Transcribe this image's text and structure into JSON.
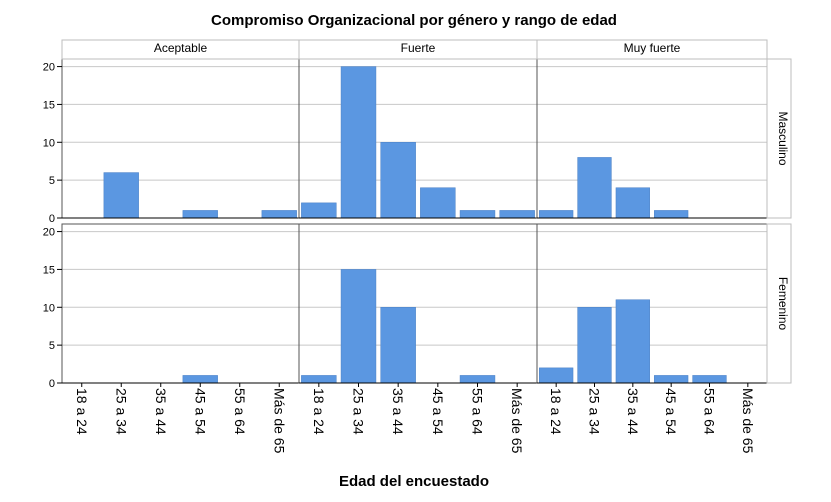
{
  "chart_data": {
    "type": "bar",
    "title": "Compromiso Organizacional por género y rango de edad",
    "xlabel": "Edad del encuestado",
    "categories": [
      "18 a 24",
      "25 a 34",
      "35 a 44",
      "45 a 54",
      "55 a 64",
      "Más de 65"
    ],
    "columns": [
      "Aceptable",
      "Fuerte",
      "Muy fuerte"
    ],
    "rows": [
      "Masculino",
      "Femenino"
    ],
    "yticks": [
      0,
      5,
      10,
      15,
      20
    ],
    "ylim": [
      0,
      21
    ],
    "grid": true,
    "bar_color": "#5b97e1",
    "panels": [
      {
        "column": "Aceptable",
        "row": "Masculino",
        "values": [
          0,
          6,
          0,
          1,
          0,
          1
        ]
      },
      {
        "column": "Fuerte",
        "row": "Masculino",
        "values": [
          2,
          20,
          10,
          4,
          1,
          1
        ]
      },
      {
        "column": "Muy fuerte",
        "row": "Masculino",
        "values": [
          1,
          8,
          4,
          1,
          0,
          0
        ]
      },
      {
        "column": "Aceptable",
        "row": "Femenino",
        "values": [
          0,
          0,
          0,
          1,
          0,
          0
        ]
      },
      {
        "column": "Fuerte",
        "row": "Femenino",
        "values": [
          1,
          15,
          10,
          0,
          1,
          0
        ]
      },
      {
        "column": "Muy fuerte",
        "row": "Femenino",
        "values": [
          2,
          10,
          11,
          1,
          1,
          0
        ]
      }
    ]
  }
}
